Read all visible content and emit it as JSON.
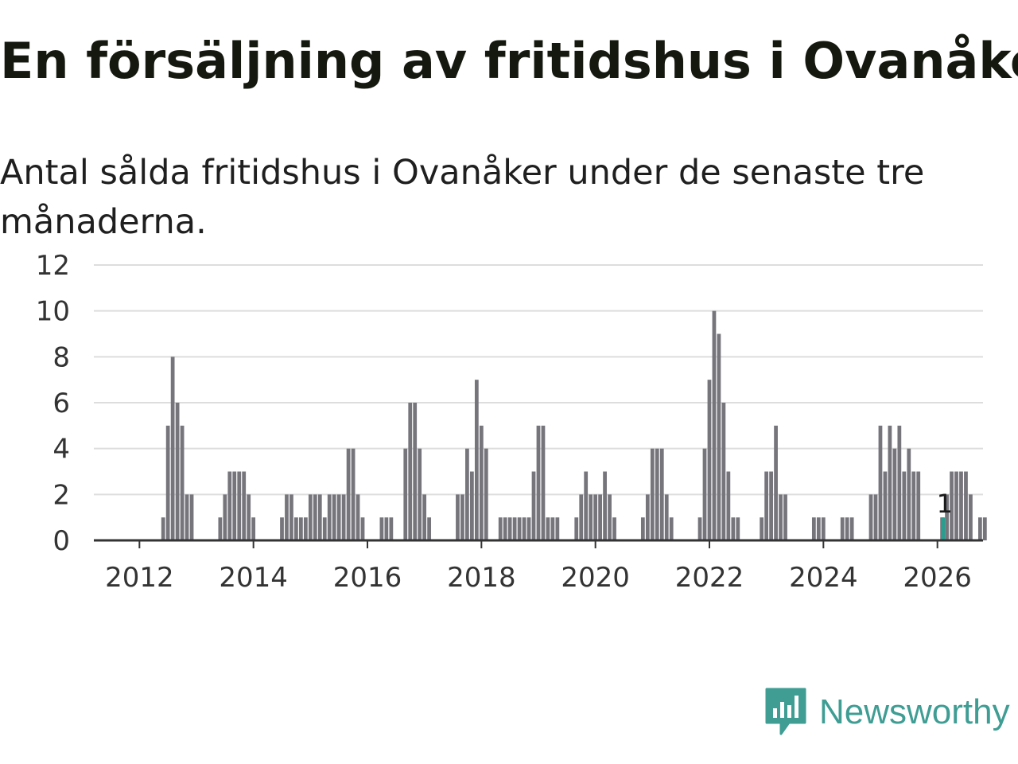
{
  "title": "En försäljning av fritidshus i Ovanåker",
  "subtitle": "Antal sålda fritidshus i Ovanåker under de senaste tre månaderna.",
  "brand": {
    "name": "Newsworthy",
    "icon": "newsworthy-logo-icon",
    "color": "#3f9d94"
  },
  "colors": {
    "bar": "#76757c",
    "highlight": "#2a9d8f",
    "grid": "#dddddd",
    "axis": "#333333"
  },
  "chart_data": {
    "type": "bar",
    "title": "En försäljning av fritidshus i Ovanåker",
    "subtitle": "Antal sålda fritidshus i Ovanåker under de senaste tre månaderna.",
    "xlabel": "",
    "ylabel": "",
    "ylim": [
      0,
      12
    ],
    "yticks": [
      0,
      2,
      4,
      6,
      8,
      10,
      12
    ],
    "xticks": [
      2012,
      2014,
      2016,
      2018,
      2020,
      2022,
      2024,
      2026
    ],
    "xlim": [
      2011.2,
      2026.8
    ],
    "grid": true,
    "bar_width_years": 0.0833,
    "series": [
      {
        "name": "Antal sålda fritidshus",
        "start": 2012.0,
        "step": 0.08333,
        "values": [
          0,
          0,
          0,
          0,
          0,
          1,
          5,
          8,
          6,
          5,
          2,
          2,
          0,
          0,
          0,
          0,
          0,
          1,
          2,
          3,
          3,
          3,
          3,
          2,
          1,
          0,
          0,
          0,
          0,
          0,
          1,
          2,
          2,
          1,
          1,
          1,
          2,
          2,
          2,
          1,
          2,
          2,
          2,
          2,
          4,
          4,
          2,
          1,
          0,
          0,
          0,
          1,
          1,
          1,
          0,
          0,
          4,
          6,
          6,
          4,
          2,
          1,
          0,
          0,
          0,
          0,
          0,
          2,
          2,
          4,
          3,
          7,
          5,
          4,
          0,
          0,
          1,
          1,
          1,
          1,
          1,
          1,
          1,
          3,
          5,
          5,
          1,
          1,
          1,
          0,
          0,
          0,
          1,
          2,
          3,
          2,
          2,
          2,
          3,
          2,
          1,
          0,
          0,
          0,
          0,
          0,
          1,
          2,
          4,
          4,
          4,
          2,
          1,
          0,
          0,
          0,
          0,
          0,
          1,
          4,
          7,
          10,
          9,
          6,
          3,
          1,
          1,
          0,
          0,
          0,
          0,
          1,
          3,
          3,
          5,
          2,
          2,
          0,
          0,
          0,
          0,
          0,
          1,
          1,
          1,
          0,
          0,
          0,
          1,
          1,
          1,
          0,
          0,
          0,
          2,
          2,
          5,
          3,
          5,
          4,
          5,
          3,
          4,
          3,
          3,
          0,
          0,
          0,
          0,
          1,
          2,
          3,
          3,
          3,
          3,
          2,
          0,
          1,
          1
        ]
      }
    ],
    "highlight": {
      "x": 2026.1,
      "value": 1,
      "label": "1"
    }
  }
}
